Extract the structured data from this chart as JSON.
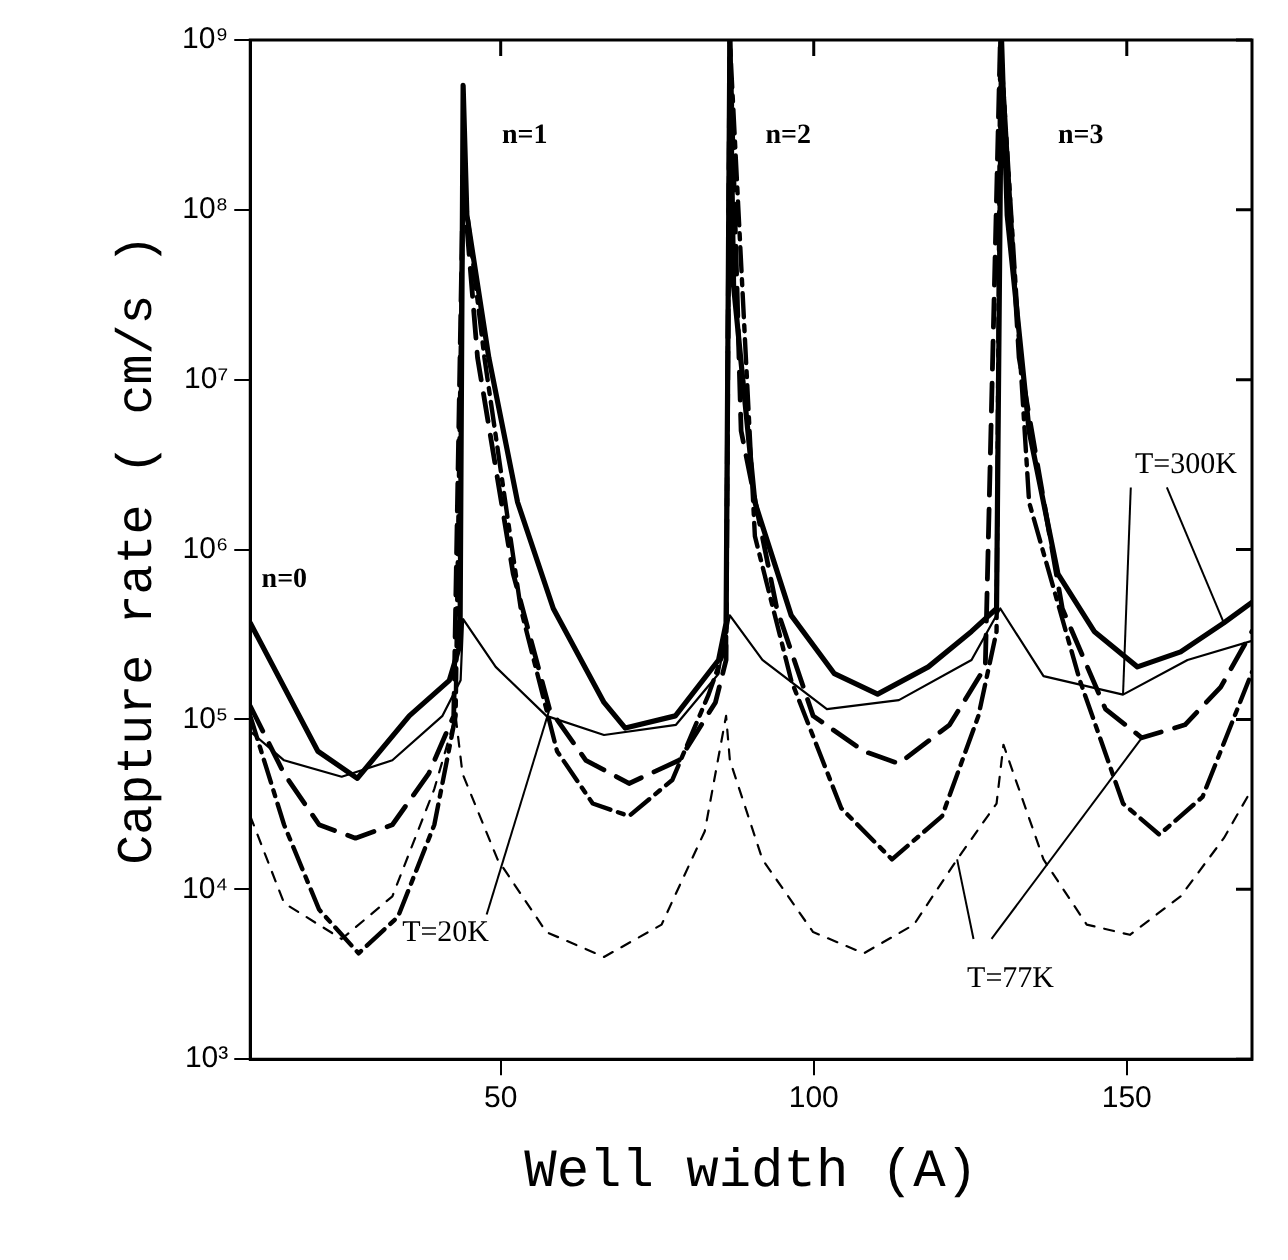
{
  "chart_data": {
    "type": "line",
    "xlabel": "Well width (A)",
    "ylabel": "Capture rate ( cm/s )",
    "log": "y",
    "grid": false,
    "legend": false,
    "marker": "none",
    "xlim": [
      10,
      170
    ],
    "xticks": [
      50,
      100,
      150
    ],
    "ylim": [
      1000,
      1000000000
    ],
    "yticks": [
      {
        "value": 1000,
        "label": "10³"
      },
      {
        "value": 10000,
        "label": "10⁴"
      },
      {
        "value": 100000,
        "label": "10⁵"
      },
      {
        "value": 1000000,
        "label": "10⁶"
      },
      {
        "value": 10000000,
        "label": "10⁷"
      },
      {
        "value": 100000000,
        "label": "10⁸"
      },
      {
        "value": 1000000000,
        "label": "10⁹"
      }
    ],
    "series": [
      {
        "color": "#000000",
        "line_style": "solid",
        "x": [
          10,
          20.8,
          27.1,
          35.4,
          41.8,
          43.5,
          44,
          44.6,
          48.1,
          52.7,
          58.4,
          66.5,
          69.9,
          77.9,
          84.8,
          86,
          86.6,
          87.2,
          90.6,
          96.4,
          103.3,
          110.2,
          118.3,
          125.2,
          129.2,
          130,
          130.9,
          134.4,
          139,
          144.8,
          151.7,
          158.6,
          165.5,
          170
        ],
        "values": [
          370000,
          65000,
          45000,
          105000,
          170000,
          275000,
          540000000,
          93000000,
          13500000,
          1900000,
          450000,
          126000,
          89000,
          105000,
          224000,
          370000,
          1000000000,
          35500000,
          1900000,
          410000,
          186000,
          141000,
          204000,
          330000,
          450000,
          1000000000,
          93000000,
          5000000,
          720000,
          330000,
          204000,
          250000,
          370000,
          490000
        ]
      },
      {
        "color": "#000000",
        "line_style": "solid",
        "x": [
          10,
          15.4,
          24.6,
          32.7,
          40.7,
          43.6,
          44,
          49.2,
          57.3,
          66.5,
          78,
          84.8,
          86.6,
          91.8,
          102.1,
          113.6,
          125.2,
          129.8,
          136.7,
          149.4,
          159.7,
          170
        ],
        "values": [
          85000,
          57500,
          46000,
          57500,
          105000,
          170000,
          390000,
          204000,
          105000,
          81000,
          93000,
          186000,
          410000,
          224000,
          115000,
          130000,
          224000,
          450000,
          180000,
          140000,
          224000,
          290000
        ]
      },
      {
        "color": "#000000",
        "line_style": "dashed",
        "x": [
          10,
          15.4,
          21,
          26.8,
          32.7,
          38.5,
          42.5,
          44,
          46.3,
          52,
          57.8,
          63.6,
          70.5,
          78.5,
          84.3,
          86,
          86.6,
          88.4,
          94.1,
          99.9,
          108,
          113.6,
          121.7,
          127.4,
          129.8,
          132.8,
          139.7,
          146.6,
          152.4,
          159.3,
          165,
          170
        ],
        "values": [
          120000,
          48000,
          24000,
          20000,
          24000,
          48000,
          105000,
          150000000,
          13500000,
          720000,
          115000,
          57500,
          42000,
          57500,
          126000,
          224000,
          1000000000,
          5000000,
          450000,
          105000,
          65000,
          55000,
          93000,
          204000,
          1000000000,
          13500000,
          450000,
          115000,
          78000,
          93000,
          155000,
          330000
        ]
      },
      {
        "color": "#000000",
        "line_style": "dashed",
        "x": [
          10,
          15.4,
          21,
          27.3,
          33.6,
          39.4,
          42.8,
          44,
          47.4,
          53.2,
          59,
          64.7,
          70.5,
          77.4,
          83.2,
          86,
          86.6,
          90.6,
          96.4,
          104.4,
          112.5,
          120.5,
          126.3,
          129.2,
          129.8,
          134.4,
          142.5,
          149.4,
          155.2,
          162.1,
          170
        ],
        "values": [
          105000,
          24000,
          7600,
          4200,
          6900,
          24000,
          105000,
          150000000,
          13500000,
          450000,
          65000,
          32000,
          27000,
          44000,
          140000,
          275000,
          1000000000,
          1200000,
          170000,
          30000,
          15000,
          27000,
          105000,
          330000,
          1000000000,
          1900000,
          170000,
          32000,
          21000,
          35000,
          190000
        ]
      },
      {
        "color": "#000000",
        "line_style": "dashed",
        "x": [
          10,
          15.4,
          24.6,
          32.7,
          39.4,
          42.8,
          43.9,
          49.5,
          57.3,
          66.5,
          75.7,
          82.6,
          86,
          86.6,
          91.8,
          99.9,
          108,
          116,
          122.9,
          129.2,
          130.3,
          136.7,
          143.6,
          150.5,
          158.6,
          165.5,
          170
        ],
        "values": [
          27000,
          8300,
          5100,
          9100,
          39000,
          105000,
          48000,
          15000,
          5600,
          4000,
          6200,
          22000,
          105000,
          57500,
          15000,
          5600,
          4200,
          6200,
          15000,
          32000,
          71000,
          15000,
          6200,
          5400,
          9100,
          20000,
          39000
        ]
      }
    ],
    "annotations": [
      "n=0",
      "n=1",
      "n=2",
      "n=3",
      {
        "text": "T=20K",
        "x": 57.8,
        "y": 115000
      },
      {
        "text": "T=300K",
        "x": 149.4,
        "y": 140000
      },
      {
        "text": "T=77K",
        "x": 122.9,
        "y": 15000
      }
    ]
  }
}
